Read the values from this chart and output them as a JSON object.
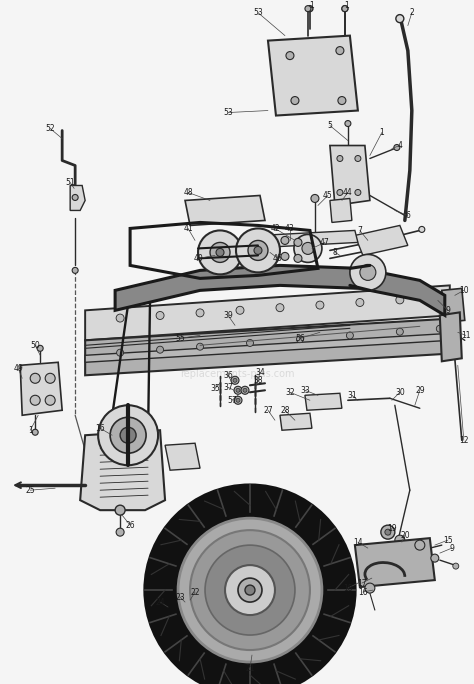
{
  "bg_color": "#f5f5f5",
  "line_color": "#2a2a2a",
  "fill_light": "#d8d8d8",
  "fill_mid": "#b0b0b0",
  "fill_dark": "#808080",
  "fill_black": "#1a1a1a",
  "belt_color": "#1a1a1a",
  "watermark": "replacements-plus.com",
  "wm_color": "#c8c8c8",
  "label_fs": 5.5,
  "label_color": "#1a1a1a",
  "lw_frame": 1.4,
  "lw_belt": 2.2,
  "lw_thin": 0.7
}
